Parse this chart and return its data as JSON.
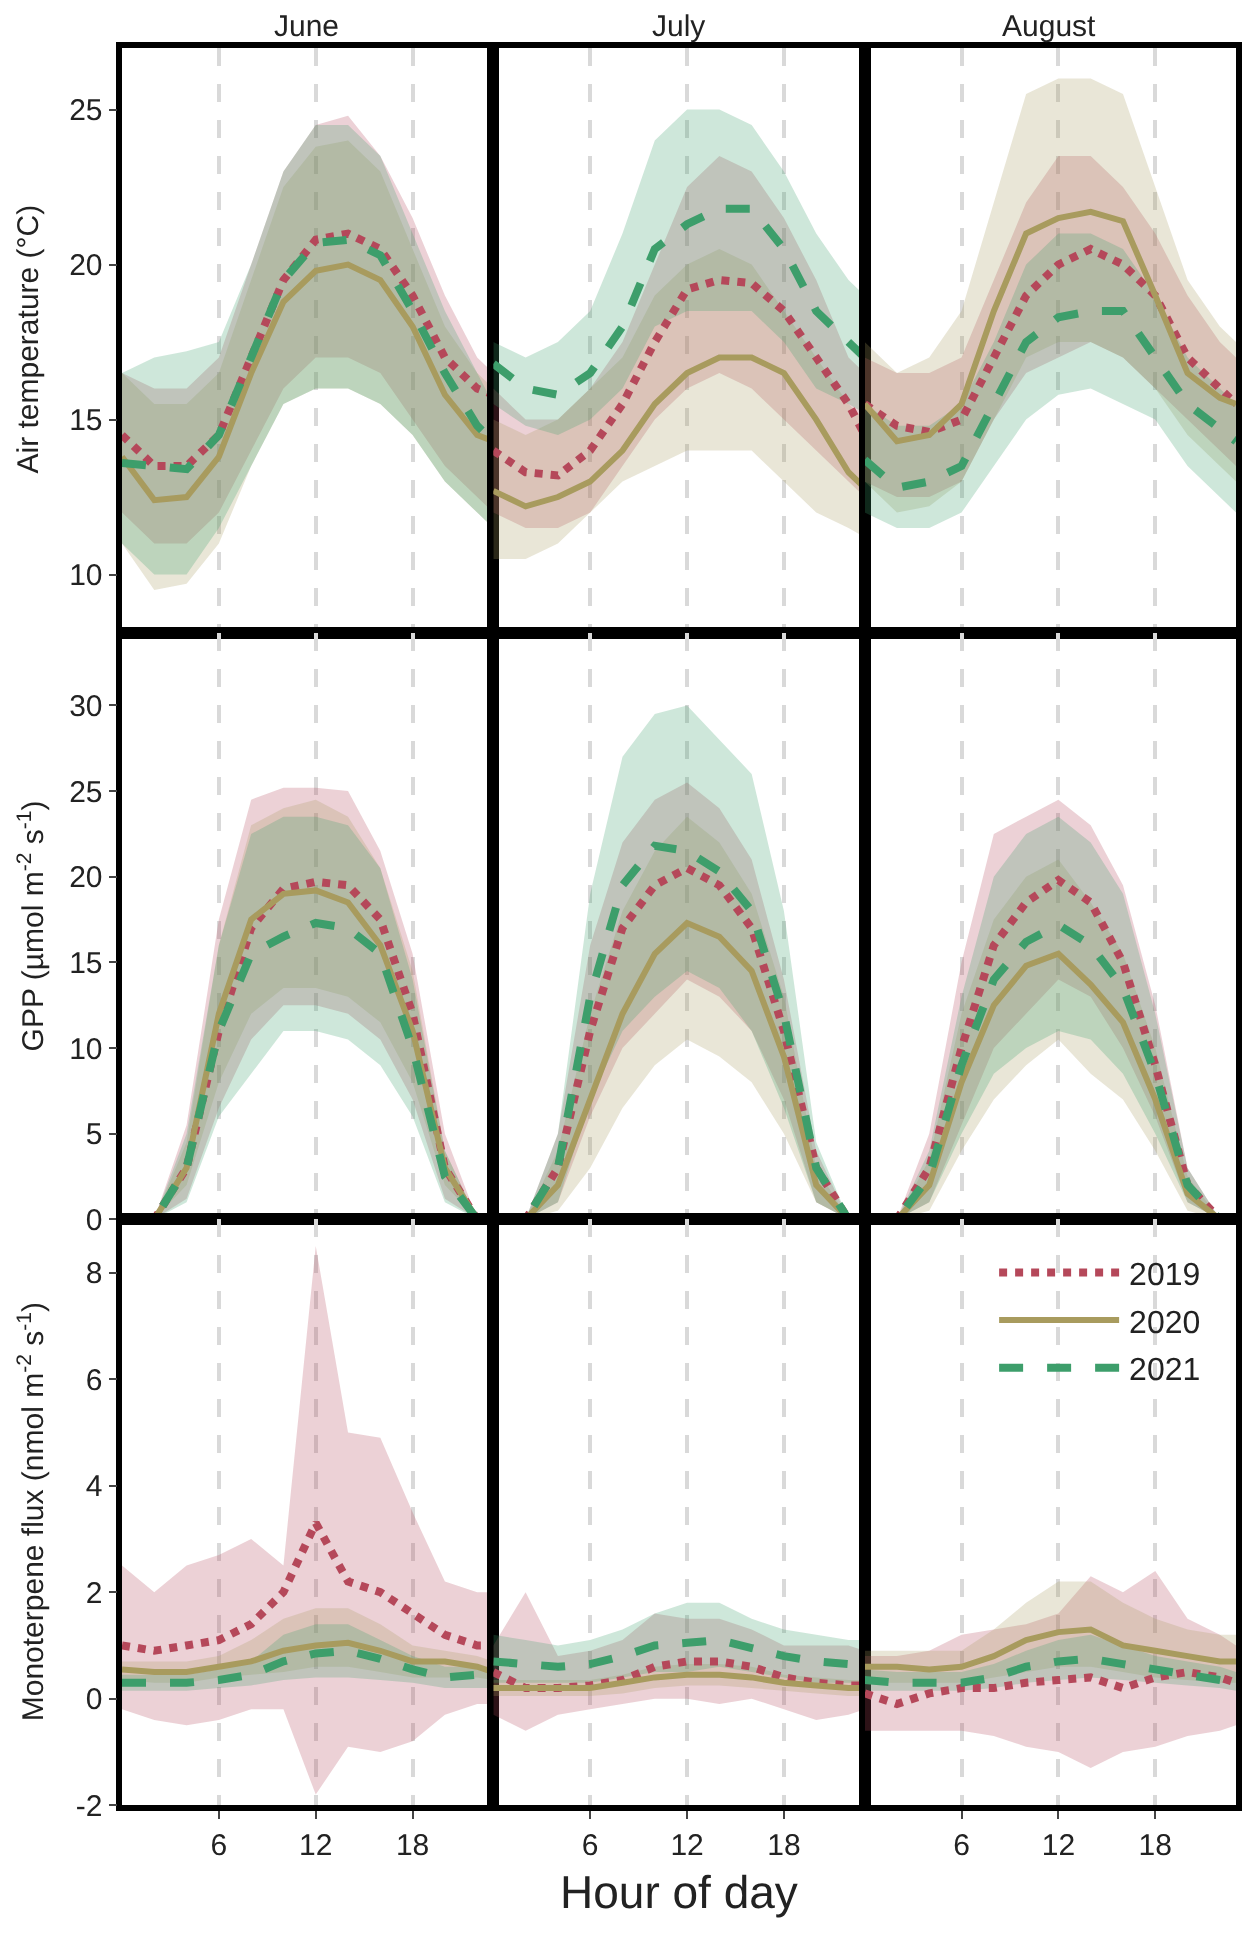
{
  "chart_data": [
    {
      "type": "line",
      "title": "June",
      "ylabel": "Air temperature (°C)",
      "x": [
        0,
        2,
        4,
        6,
        8,
        10,
        12,
        14,
        16,
        18,
        20,
        22,
        23
      ],
      "xlim": [
        0,
        23
      ],
      "xticks": [
        6,
        12,
        18
      ],
      "ylim": [
        8.1,
        27
      ],
      "yticks": [
        10,
        15,
        20,
        25
      ],
      "grid": "x",
      "tick_labels": "y",
      "series": [
        {
          "color": "#b5485a",
          "line_style": "dotted",
          "values": [
            14.5,
            13.5,
            13.5,
            14.5,
            17,
            19.5,
            20.8,
            21,
            20.5,
            19,
            17,
            16,
            15.8
          ],
          "upper": [
            16.5,
            16,
            16,
            17,
            20,
            23,
            24.5,
            24.8,
            23.5,
            21.5,
            19,
            17,
            16.5
          ],
          "lower": [
            12,
            11,
            11,
            12,
            14,
            16,
            17,
            17,
            16.5,
            15,
            13.5,
            12.5,
            12
          ]
        },
        {
          "color": "#a89b5e",
          "line_style": "solid",
          "values": [
            13.8,
            12.4,
            12.5,
            13.8,
            16.5,
            18.8,
            19.8,
            20,
            19.5,
            18,
            15.8,
            14.5,
            14.3
          ],
          "upper": [
            16.5,
            15.5,
            15.5,
            16.5,
            19.5,
            22.5,
            23.8,
            24,
            23,
            20.5,
            18,
            16.5,
            16
          ],
          "lower": [
            11,
            9.5,
            9.7,
            11,
            13.5,
            15.5,
            16,
            16,
            15.5,
            14.5,
            13,
            12,
            11.5
          ]
        },
        {
          "color": "#3d9e6b",
          "line_style": "dashed",
          "values": [
            13.6,
            13.5,
            13.4,
            14.5,
            17,
            19.5,
            20.7,
            20.8,
            20.3,
            18.5,
            16.5,
            14.8,
            14.3
          ],
          "upper": [
            16.5,
            17,
            17.2,
            17.5,
            20,
            23,
            24.5,
            24.5,
            23.5,
            21,
            18.5,
            16.5,
            15.5
          ],
          "lower": [
            11,
            10,
            10,
            11.5,
            13.5,
            15.5,
            16,
            16,
            15.5,
            14.5,
            13,
            12,
            11.5
          ]
        }
      ]
    },
    {
      "type": "line",
      "title": "July",
      "x": [
        0,
        2,
        4,
        6,
        8,
        10,
        12,
        14,
        16,
        18,
        20,
        22,
        23
      ],
      "xlim": [
        0,
        23
      ],
      "xticks": [
        6,
        12,
        18
      ],
      "ylim": [
        8.1,
        27
      ],
      "yticks": [
        10,
        15,
        20,
        25
      ],
      "grid": "x",
      "tick_labels": false,
      "series": [
        {
          "color": "#b5485a",
          "line_style": "dotted",
          "values": [
            14,
            13.3,
            13.2,
            14,
            15.5,
            17.5,
            19.2,
            19.5,
            19.4,
            18.5,
            17,
            15.5,
            14.5
          ],
          "upper": [
            16,
            15,
            15,
            16,
            17.5,
            20,
            22.5,
            23.5,
            23,
            21.5,
            19.5,
            17,
            16.5
          ],
          "lower": [
            12,
            11.5,
            11.5,
            12,
            13.5,
            15,
            16,
            16.5,
            16,
            15,
            14,
            13,
            12.5
          ]
        },
        {
          "color": "#a89b5e",
          "line_style": "solid",
          "values": [
            12.7,
            12.2,
            12.5,
            13,
            14,
            15.5,
            16.5,
            17,
            17,
            16.5,
            15,
            13.3,
            12.8
          ],
          "upper": [
            15,
            14.5,
            15,
            16,
            17,
            19,
            20,
            20.5,
            20,
            18.5,
            17,
            15.5,
            15
          ],
          "lower": [
            10.5,
            10.5,
            11,
            12,
            13,
            13.5,
            14,
            14,
            14,
            13,
            12,
            11.5,
            11.2
          ]
        },
        {
          "color": "#3d9e6b",
          "line_style": "dashed",
          "values": [
            16.8,
            16,
            15.8,
            16.5,
            18,
            20.5,
            21.3,
            21.8,
            21.8,
            20.5,
            18.5,
            17.5,
            17
          ],
          "upper": [
            17.5,
            17,
            17.5,
            18.5,
            21,
            24,
            25,
            25,
            24.5,
            23,
            21,
            19.5,
            19
          ],
          "lower": [
            15.5,
            14.8,
            14.5,
            15,
            16,
            18,
            18.5,
            18.5,
            18.5,
            17.5,
            16,
            15.5,
            15.2
          ]
        }
      ]
    },
    {
      "type": "line",
      "title": "August",
      "x": [
        0,
        2,
        4,
        6,
        8,
        10,
        12,
        14,
        16,
        18,
        20,
        22,
        23
      ],
      "xlim": [
        0,
        23
      ],
      "xticks": [
        6,
        12,
        18
      ],
      "ylim": [
        8.1,
        27
      ],
      "yticks": [
        10,
        15,
        20,
        25
      ],
      "grid": "x",
      "tick_labels": false,
      "series": [
        {
          "color": "#b5485a",
          "line_style": "dotted",
          "values": [
            15.5,
            14.8,
            14.6,
            15,
            17,
            19,
            20,
            20.5,
            20,
            19,
            17,
            16,
            15.5
          ],
          "upper": [
            17,
            16.5,
            16.5,
            17,
            19.5,
            22,
            23.5,
            23.5,
            22.5,
            21,
            19,
            17.5,
            17
          ],
          "lower": [
            13,
            12.5,
            12.5,
            13,
            15,
            16.5,
            17,
            17.5,
            17,
            16,
            15,
            14,
            13.5
          ]
        },
        {
          "color": "#a89b5e",
          "line_style": "solid",
          "values": [
            15.5,
            14.3,
            14.5,
            15.5,
            18.5,
            21,
            21.5,
            21.7,
            21.4,
            19,
            16.5,
            15.7,
            15.5
          ],
          "upper": [
            17.5,
            16.5,
            17,
            18.5,
            22,
            25.5,
            26,
            26,
            25.5,
            22.5,
            19.5,
            18,
            17.5
          ],
          "lower": [
            13,
            12,
            12.2,
            13,
            15,
            17,
            17.5,
            17.5,
            17,
            16,
            14.5,
            13.5,
            13
          ]
        },
        {
          "color": "#3d9e6b",
          "line_style": "dashed",
          "values": [
            13.7,
            12.8,
            13,
            13.5,
            15.5,
            17.5,
            18.3,
            18.5,
            18.5,
            17,
            15.5,
            14.7,
            14.3
          ],
          "upper": [
            15.5,
            14.8,
            14.8,
            15.5,
            17.5,
            20,
            21,
            21,
            20.5,
            19,
            17,
            16,
            15.5
          ],
          "lower": [
            12,
            11.5,
            11.5,
            12,
            13.5,
            15,
            15.8,
            16,
            15.5,
            15,
            13.5,
            12.5,
            12
          ]
        }
      ]
    },
    {
      "type": "line",
      "ylabel": "GPP (µmol m$^{-2}$ s$^{-1}$)",
      "x": [
        0,
        2,
        4,
        6,
        8,
        10,
        12,
        14,
        16,
        18,
        20,
        22,
        23
      ],
      "xlim": [
        0,
        23
      ],
      "xticks": [
        6,
        12,
        18
      ],
      "ylim": [
        0,
        34.2
      ],
      "yticks": [
        0,
        5,
        10,
        15,
        20,
        25,
        30
      ],
      "grid": "x",
      "tick_labels": "y",
      "series": [
        {
          "color": "#b5485a",
          "line_style": "dotted",
          "values": [
            0,
            0,
            3,
            11,
            17,
            19.3,
            19.7,
            19.5,
            17.5,
            12,
            3,
            0,
            0
          ],
          "upper": [
            0,
            0,
            5.5,
            17.5,
            24.5,
            25.2,
            25.2,
            25,
            21.5,
            15.5,
            5,
            0,
            0
          ],
          "lower": [
            0,
            0,
            1.2,
            6.5,
            10.5,
            12.5,
            12.5,
            12,
            10.5,
            7,
            1.2,
            0,
            0
          ]
        },
        {
          "color": "#a89b5e",
          "line_style": "solid",
          "values": [
            0,
            0,
            3,
            12,
            17.5,
            19,
            19.2,
            18.5,
            16,
            11,
            3,
            0,
            0
          ],
          "upper": [
            0,
            0,
            4.5,
            16,
            23,
            24,
            24.5,
            23.5,
            20.5,
            14.5,
            4,
            0,
            0
          ],
          "lower": [
            0,
            0,
            2,
            8,
            12,
            13.5,
            13.5,
            13,
            11.5,
            8,
            2,
            0,
            0
          ]
        },
        {
          "color": "#3d9e6b",
          "line_style": "dashed",
          "values": [
            0,
            0,
            3,
            11,
            15.5,
            16.5,
            17.3,
            17,
            15.5,
            10,
            2.5,
            0,
            0
          ],
          "upper": [
            0,
            0,
            5,
            16,
            22.5,
            23.5,
            23.5,
            23,
            20.5,
            14,
            4,
            0,
            0
          ],
          "lower": [
            0,
            0,
            1,
            6,
            8.5,
            11,
            11,
            10.5,
            9,
            6,
            1,
            0,
            0
          ]
        }
      ]
    },
    {
      "type": "line",
      "x": [
        0,
        2,
        4,
        6,
        8,
        10,
        12,
        14,
        16,
        18,
        20,
        22,
        23
      ],
      "xlim": [
        0,
        23
      ],
      "xticks": [
        6,
        12,
        18
      ],
      "ylim": [
        0,
        34.2
      ],
      "yticks": [
        0,
        5,
        10,
        15,
        20,
        25,
        30
      ],
      "grid": "x",
      "tick_labels": false,
      "series": [
        {
          "color": "#b5485a",
          "line_style": "dotted",
          "values": [
            0,
            0,
            3,
            11,
            17,
            19.5,
            20.5,
            19.5,
            17,
            11,
            3,
            0,
            0
          ],
          "upper": [
            0,
            0,
            5,
            16,
            22,
            24.5,
            25.5,
            24,
            21,
            14,
            4,
            0,
            0
          ],
          "lower": [
            0,
            0,
            1,
            6,
            10,
            12,
            14,
            13,
            11,
            7,
            1,
            0,
            0
          ]
        },
        {
          "color": "#a89b5e",
          "line_style": "solid",
          "values": [
            0,
            0,
            2,
            7,
            12,
            15.5,
            17.3,
            16.5,
            14.5,
            9.5,
            2,
            0,
            0
          ],
          "upper": [
            0,
            0,
            4,
            12,
            18,
            21.5,
            23.5,
            22,
            19,
            13,
            3,
            0,
            0
          ],
          "lower": [
            0,
            0,
            0.5,
            3,
            6.5,
            9,
            10.5,
            9.5,
            8,
            5,
            1,
            0,
            0
          ]
        },
        {
          "color": "#3d9e6b",
          "line_style": "dashed",
          "values": [
            0,
            0,
            3,
            13,
            19.5,
            21.8,
            21.5,
            20.3,
            18,
            12,
            3,
            0,
            0
          ],
          "upper": [
            0,
            0,
            5,
            19,
            27,
            29.5,
            30,
            28,
            26,
            18,
            4.5,
            0,
            0
          ],
          "lower": [
            0,
            0,
            1,
            7,
            11,
            13,
            14.5,
            13.5,
            11,
            6.5,
            1,
            0,
            0
          ]
        }
      ]
    },
    {
      "type": "line",
      "x": [
        0,
        2,
        4,
        6,
        8,
        10,
        12,
        14,
        16,
        18,
        20,
        22,
        23
      ],
      "xlim": [
        0,
        23
      ],
      "xticks": [
        6,
        12,
        18
      ],
      "ylim": [
        0,
        34.2
      ],
      "yticks": [
        0,
        5,
        10,
        15,
        20,
        25,
        30
      ],
      "grid": "x",
      "tick_labels": false,
      "series": [
        {
          "color": "#b5485a",
          "line_style": "dotted",
          "values": [
            0,
            0,
            3,
            10,
            16,
            18.5,
            19.8,
            18.5,
            15,
            9,
            2,
            0,
            0
          ],
          "upper": [
            0,
            0,
            5,
            15,
            22.5,
            23.5,
            24.5,
            23,
            19.5,
            12.5,
            3,
            0,
            0
          ],
          "lower": [
            0,
            0,
            1,
            5.5,
            10,
            12,
            14,
            13,
            10,
            6,
            1,
            0,
            0
          ]
        },
        {
          "color": "#a89b5e",
          "line_style": "solid",
          "values": [
            0,
            0,
            2,
            8,
            12.5,
            14.8,
            15.5,
            13.7,
            11.5,
            7,
            1.5,
            0,
            0
          ],
          "upper": [
            0,
            0,
            3.5,
            12,
            17.5,
            20,
            21,
            18.5,
            15.5,
            10,
            2.5,
            0,
            0
          ],
          "lower": [
            0,
            0,
            0.5,
            4,
            7,
            9,
            10.5,
            8.5,
            7,
            4,
            0.5,
            0,
            0
          ]
        },
        {
          "color": "#3d9e6b",
          "line_style": "dashed",
          "values": [
            0,
            0,
            2.5,
            9,
            14,
            16.2,
            17.2,
            16,
            13.5,
            8.5,
            2,
            0,
            0
          ],
          "upper": [
            0,
            0,
            4,
            13,
            20,
            22.5,
            23.5,
            22,
            19,
            12,
            3,
            0,
            0
          ],
          "lower": [
            0,
            0,
            1,
            5,
            8.5,
            10,
            11,
            10.5,
            8.5,
            5,
            1,
            0,
            0
          ]
        }
      ]
    },
    {
      "type": "line",
      "ylabel": "Monoterpene flux (nmol m$^{-2}$ s$^{-1}$)",
      "x": [
        0,
        2,
        4,
        6,
        8,
        10,
        12,
        14,
        16,
        18,
        20,
        22,
        23
      ],
      "xlim": [
        0,
        23
      ],
      "xticks": [
        6,
        12,
        18
      ],
      "ylim": [
        -2,
        9
      ],
      "yticks": [
        -2,
        0,
        2,
        4,
        6,
        8
      ],
      "grid": "x",
      "series": [
        {
          "color": "#b5485a",
          "line_style": "dotted",
          "values": [
            1.0,
            0.9,
            1.0,
            1.1,
            1.4,
            2.0,
            3.3,
            2.2,
            2.0,
            1.6,
            1.2,
            1.0,
            1.0
          ],
          "upper": [
            2.5,
            2.0,
            2.5,
            2.7,
            3.0,
            2.5,
            8.5,
            5.0,
            4.9,
            3.5,
            2.2,
            2.0,
            2.0
          ],
          "lower": [
            -0.2,
            -0.4,
            -0.5,
            -0.4,
            -0.2,
            -0.2,
            -1.8,
            -0.9,
            -1.0,
            -0.8,
            -0.3,
            -0.1,
            -0.1
          ]
        },
        {
          "color": "#a89b5e",
          "line_style": "solid",
          "values": [
            0.55,
            0.5,
            0.5,
            0.6,
            0.7,
            0.9,
            1.0,
            1.05,
            0.9,
            0.7,
            0.7,
            0.6,
            0.5
          ],
          "upper": [
            0.7,
            0.7,
            0.7,
            0.8,
            1.1,
            1.5,
            1.7,
            1.7,
            1.4,
            1.0,
            0.9,
            0.8,
            0.7
          ],
          "lower": [
            0.35,
            0.3,
            0.3,
            0.4,
            0.45,
            0.5,
            0.6,
            0.6,
            0.5,
            0.4,
            0.4,
            0.4,
            0.35
          ]
        },
        {
          "color": "#3d9e6b",
          "line_style": "dashed",
          "values": [
            0.3,
            0.3,
            0.3,
            0.35,
            0.45,
            0.7,
            0.85,
            0.9,
            0.75,
            0.55,
            0.4,
            0.45,
            0.4
          ],
          "upper": [
            0.45,
            0.45,
            0.45,
            0.55,
            0.7,
            1.2,
            1.4,
            1.4,
            1.1,
            0.8,
            0.6,
            0.6,
            0.55
          ],
          "lower": [
            0.15,
            0.15,
            0.15,
            0.2,
            0.25,
            0.35,
            0.4,
            0.4,
            0.35,
            0.3,
            0.2,
            0.2,
            0.2
          ]
        }
      ]
    },
    {
      "type": "line",
      "xlabel": "Hour of day",
      "x": [
        0,
        2,
        4,
        6,
        8,
        10,
        12,
        14,
        16,
        18,
        20,
        22,
        23
      ],
      "xlim": [
        0,
        23
      ],
      "xticks": [
        6,
        12,
        18
      ],
      "ylim": [
        -2,
        9
      ],
      "yticks": [
        -2,
        0,
        2,
        4,
        6,
        8
      ],
      "grid": "x",
      "tick_labels": "x",
      "series": [
        {
          "color": "#b5485a",
          "line_style": "dotted",
          "values": [
            0.5,
            0.2,
            0.2,
            0.25,
            0.35,
            0.6,
            0.7,
            0.7,
            0.6,
            0.4,
            0.3,
            0.25,
            0.25
          ],
          "upper": [
            1.0,
            2.0,
            0.8,
            0.9,
            1.1,
            1.6,
            1.5,
            1.5,
            1.3,
            1.0,
            1.0,
            1.0,
            0.9
          ],
          "lower": [
            -0.3,
            -0.6,
            -0.3,
            -0.2,
            -0.1,
            0.0,
            0.0,
            -0.1,
            0.0,
            -0.2,
            -0.4,
            -0.3,
            -0.2
          ]
        },
        {
          "color": "#a89b5e",
          "line_style": "solid",
          "values": [
            0.2,
            0.2,
            0.2,
            0.2,
            0.3,
            0.4,
            0.45,
            0.45,
            0.4,
            0.3,
            0.25,
            0.2,
            0.2
          ],
          "upper": [
            0.35,
            0.35,
            0.35,
            0.35,
            0.45,
            0.6,
            0.65,
            0.65,
            0.6,
            0.45,
            0.4,
            0.35,
            0.35
          ],
          "lower": [
            0.05,
            0.05,
            0.05,
            0.05,
            0.1,
            0.2,
            0.25,
            0.25,
            0.2,
            0.15,
            0.1,
            0.05,
            0.05
          ]
        },
        {
          "color": "#3d9e6b",
          "line_style": "dashed",
          "values": [
            0.7,
            0.65,
            0.6,
            0.65,
            0.8,
            1.0,
            1.05,
            1.1,
            0.95,
            0.8,
            0.7,
            0.65,
            0.65
          ],
          "upper": [
            1.2,
            1.1,
            1.0,
            1.1,
            1.3,
            1.6,
            1.8,
            1.8,
            1.5,
            1.3,
            1.2,
            1.1,
            1.1
          ],
          "lower": [
            0.3,
            0.3,
            0.3,
            0.3,
            0.4,
            0.5,
            0.5,
            0.6,
            0.5,
            0.4,
            0.3,
            0.3,
            0.3
          ]
        }
      ]
    },
    {
      "type": "line",
      "x": [
        0,
        2,
        4,
        6,
        8,
        10,
        12,
        14,
        16,
        18,
        20,
        22,
        23
      ],
      "xlim": [
        0,
        23
      ],
      "xticks": [
        6,
        12,
        18
      ],
      "ylim": [
        -2,
        9
      ],
      "yticks": [
        -2,
        0,
        2,
        4,
        6,
        8
      ],
      "grid": "x",
      "tick_labels": "x",
      "legend": "top right",
      "series": [
        {
          "name": "2019",
          "color": "#b5485a",
          "line_style": "dotted",
          "values": [
            0.1,
            -0.1,
            0.1,
            0.2,
            0.2,
            0.3,
            0.35,
            0.4,
            0.2,
            0.4,
            0.5,
            0.4,
            0.3
          ],
          "upper": [
            0.8,
            0.8,
            0.9,
            1.2,
            1.3,
            1.4,
            1.6,
            2.3,
            2.0,
            2.4,
            1.5,
            1.2,
            1.0
          ],
          "lower": [
            -0.6,
            -0.6,
            -0.6,
            -0.6,
            -0.7,
            -0.9,
            -1.0,
            -1.3,
            -1.0,
            -0.9,
            -0.7,
            -0.6,
            -0.5
          ]
        },
        {
          "name": "2020",
          "color": "#a89b5e",
          "line_style": "solid",
          "values": [
            0.6,
            0.6,
            0.55,
            0.6,
            0.8,
            1.1,
            1.25,
            1.3,
            1.0,
            0.9,
            0.8,
            0.7,
            0.7
          ],
          "upper": [
            0.9,
            0.9,
            0.9,
            0.9,
            1.3,
            1.8,
            2.2,
            2.2,
            1.8,
            1.5,
            1.3,
            1.2,
            1.2
          ],
          "lower": [
            0.3,
            0.3,
            0.3,
            0.3,
            0.4,
            0.5,
            0.6,
            0.6,
            0.5,
            0.4,
            0.35,
            0.3,
            0.3
          ]
        },
        {
          "name": "2021",
          "color": "#3d9e6b",
          "line_style": "dashed",
          "values": [
            0.35,
            0.3,
            0.3,
            0.3,
            0.4,
            0.6,
            0.7,
            0.75,
            0.65,
            0.55,
            0.45,
            0.35,
            0.3
          ],
          "upper": [
            0.55,
            0.5,
            0.5,
            0.5,
            0.65,
            0.9,
            1.1,
            1.2,
            1.0,
            0.8,
            0.7,
            0.6,
            0.5
          ],
          "lower": [
            0.15,
            0.15,
            0.15,
            0.15,
            0.2,
            0.3,
            0.35,
            0.4,
            0.35,
            0.3,
            0.25,
            0.2,
            0.15
          ]
        }
      ]
    }
  ]
}
